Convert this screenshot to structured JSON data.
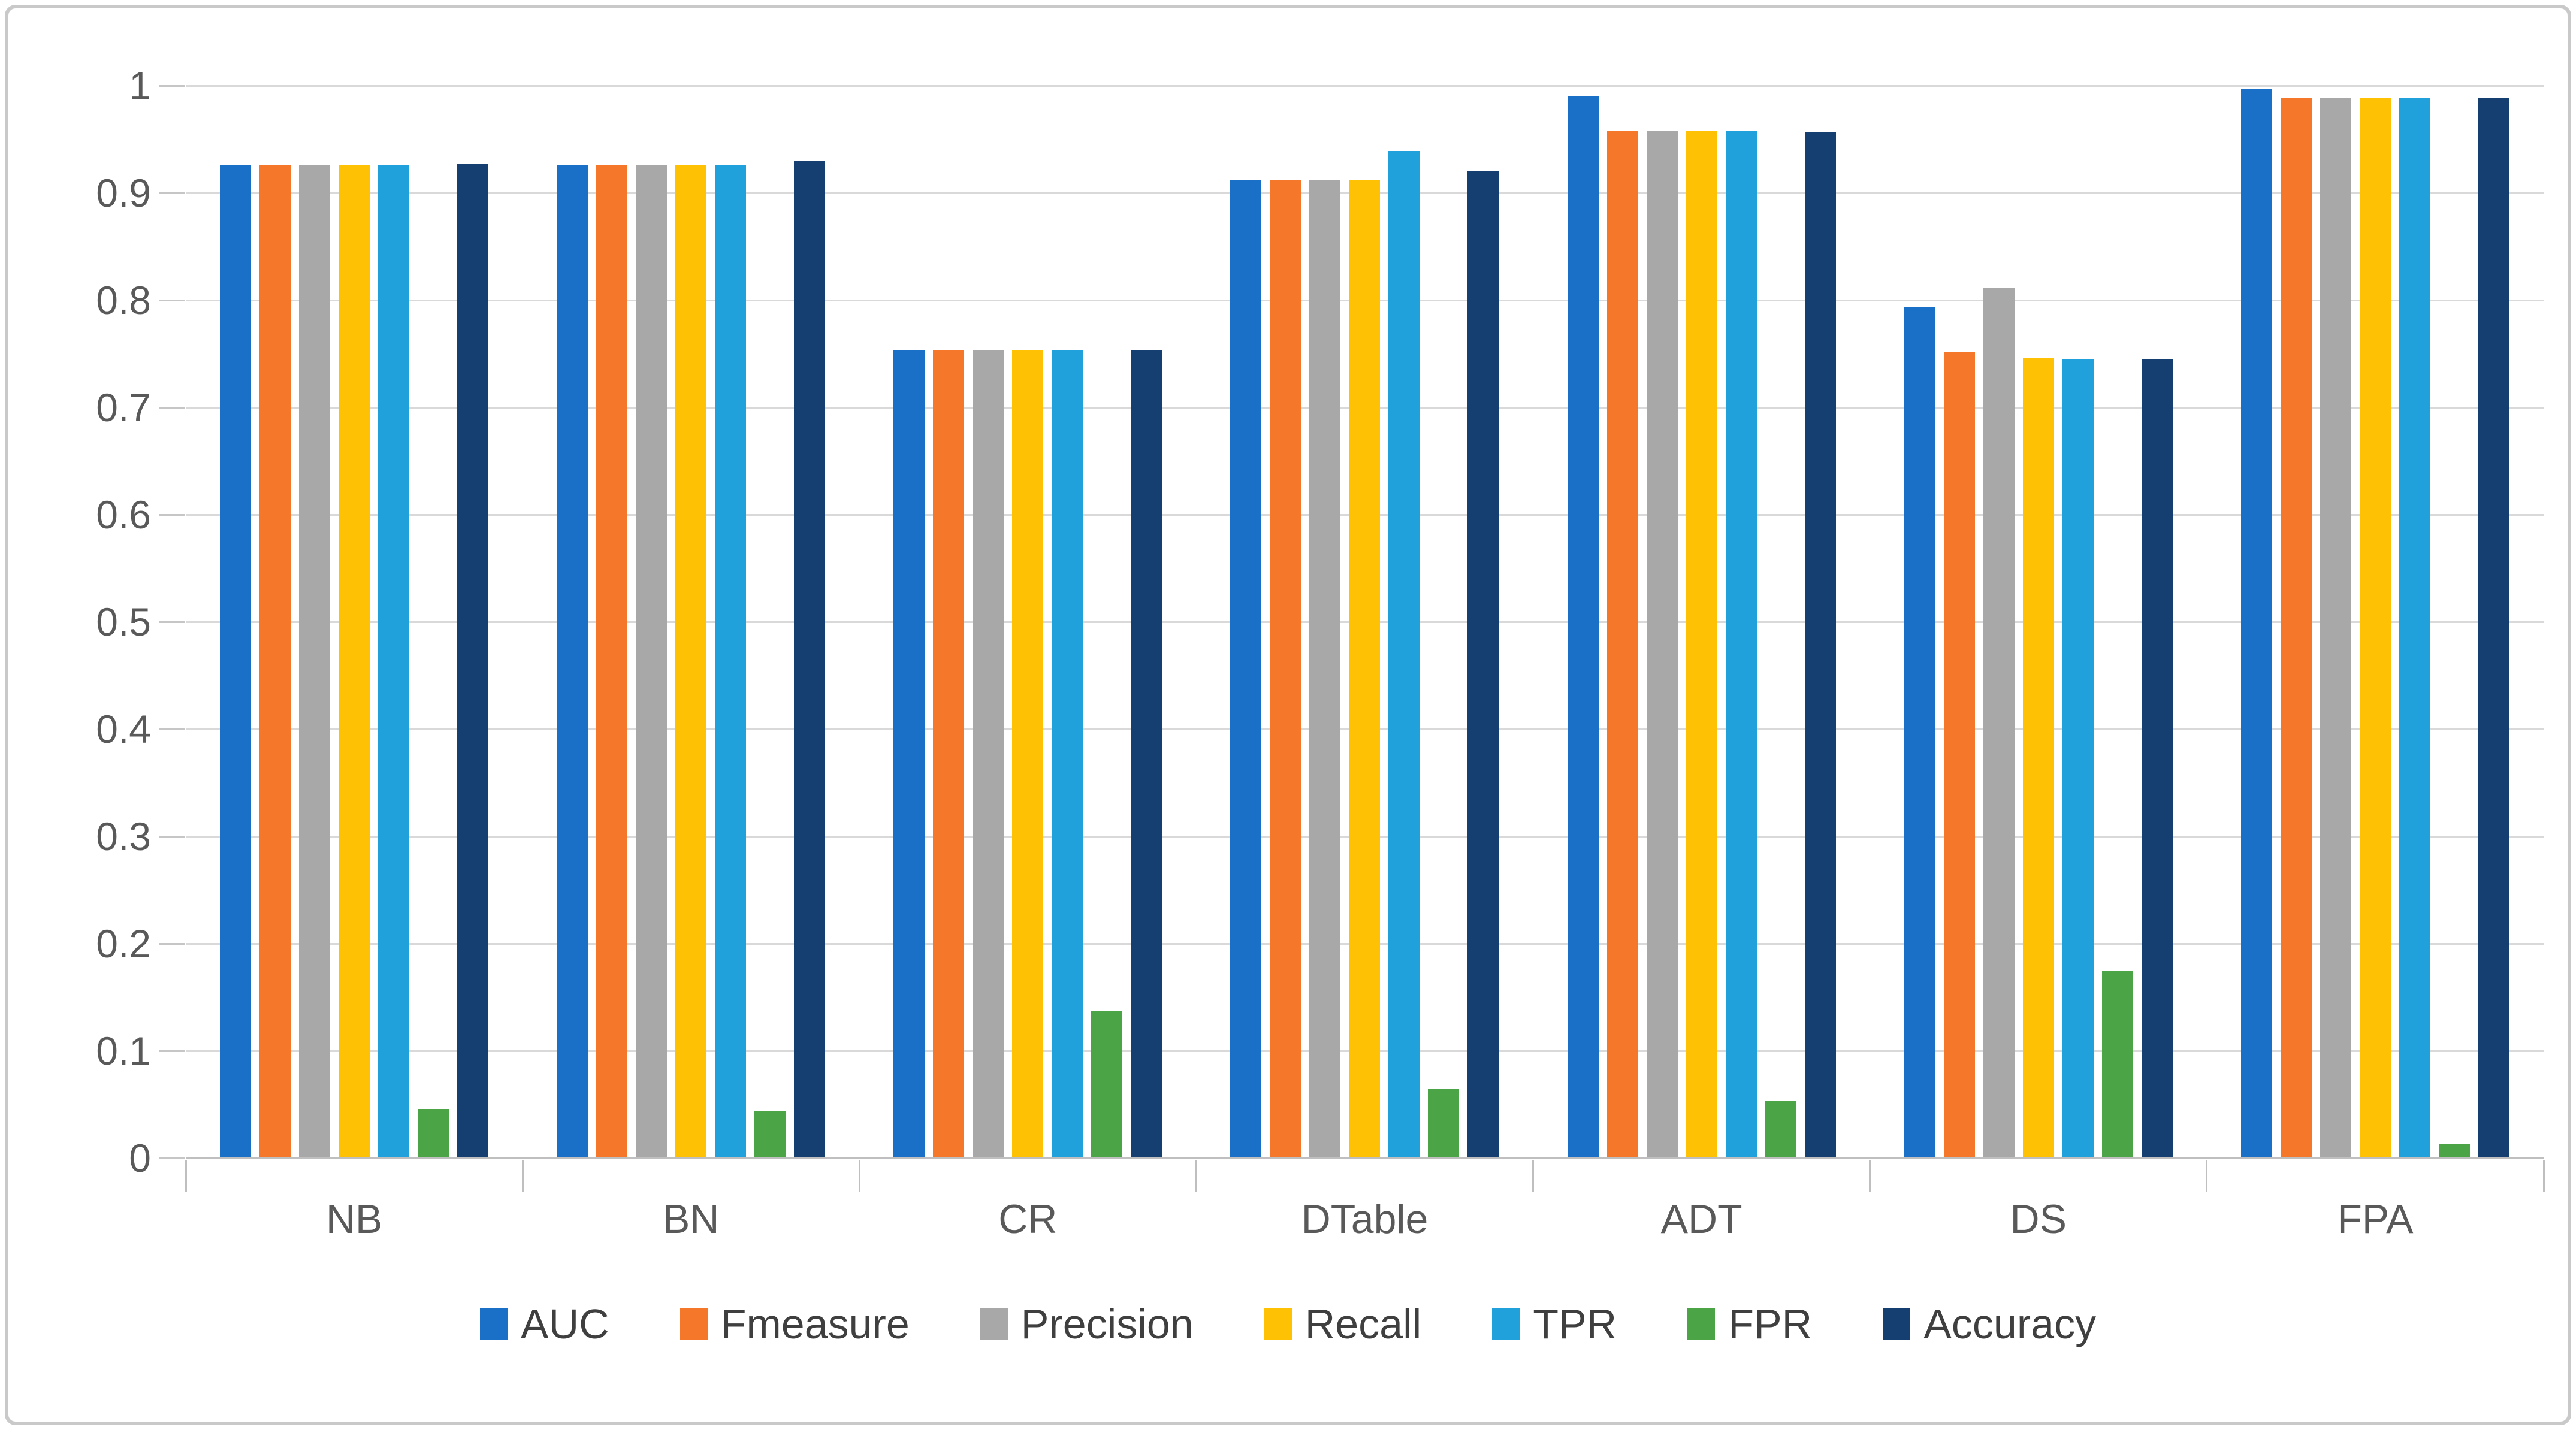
{
  "figure": {
    "background": "#ffffff",
    "frame_border_color": "#c9c9c9",
    "gridline_color": "#d9d9d9",
    "axis_line_color": "#bfbfbf",
    "tick_label_color": "#595959",
    "legend_text_color": "#3f3f3f"
  },
  "chart_data": {
    "type": "bar",
    "title": "",
    "xlabel": "",
    "ylabel": "",
    "categories": [
      "NB",
      "BN",
      "CR",
      "DTable",
      "ADT",
      "DS",
      "FPA"
    ],
    "series": [
      {
        "name": "AUC",
        "color": "#1a6fc6",
        "values": [
          0.926,
          0.926,
          0.753,
          0.912,
          0.99,
          0.794,
          0.997
        ]
      },
      {
        "name": "Fmeasure",
        "color": "#f5782a",
        "values": [
          0.926,
          0.926,
          0.753,
          0.912,
          0.958,
          0.752,
          0.989
        ]
      },
      {
        "name": "Precision",
        "color": "#a8a8a8",
        "values": [
          0.926,
          0.926,
          0.753,
          0.912,
          0.958,
          0.811,
          0.989
        ]
      },
      {
        "name": "Recall",
        "color": "#ffc103",
        "values": [
          0.926,
          0.926,
          0.753,
          0.912,
          0.958,
          0.746,
          0.989
        ]
      },
      {
        "name": "TPR",
        "color": "#21a1dc",
        "values": [
          0.926,
          0.926,
          0.753,
          0.939,
          0.958,
          0.745,
          0.989
        ]
      },
      {
        "name": "FPR",
        "color": "#4ba546",
        "values": [
          0.046,
          0.044,
          0.137,
          0.064,
          0.053,
          0.175,
          0.013
        ]
      },
      {
        "name": "Accuracy",
        "color": "#153f70",
        "values": [
          0.927,
          0.93,
          0.753,
          0.92,
          0.957,
          0.745,
          0.989
        ]
      }
    ],
    "ylim": [
      0,
      1
    ],
    "y_ticks": [
      {
        "label": "0",
        "value": 0.0
      },
      {
        "label": "0.1",
        "value": 0.1
      },
      {
        "label": "0.2",
        "value": 0.2
      },
      {
        "label": "0.3",
        "value": 0.3
      },
      {
        "label": "0.4",
        "value": 0.4
      },
      {
        "label": "0.5",
        "value": 0.5
      },
      {
        "label": "0.6",
        "value": 0.6
      },
      {
        "label": "0.7",
        "value": 0.7
      },
      {
        "label": "0.8",
        "value": 0.8
      },
      {
        "label": "0.9",
        "value": 0.9
      },
      {
        "label": "1",
        "value": 1.0
      }
    ],
    "grid": true,
    "legend_position": "bottom"
  }
}
